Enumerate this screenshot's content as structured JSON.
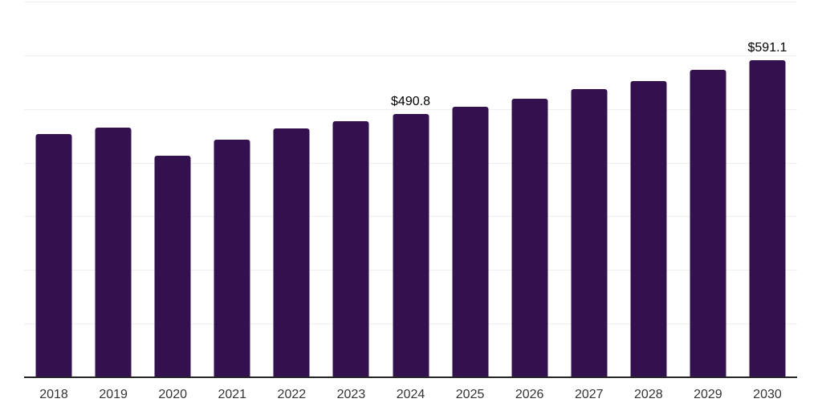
{
  "chart_data": {
    "type": "bar",
    "categories": [
      "2018",
      "2019",
      "2020",
      "2021",
      "2022",
      "2023",
      "2024",
      "2025",
      "2026",
      "2027",
      "2028",
      "2029",
      "2030"
    ],
    "values": [
      453.7,
      465.5,
      413.4,
      443.3,
      464.2,
      477.8,
      490.8,
      504.4,
      518.9,
      536.3,
      552.6,
      573.0,
      591.1
    ],
    "data_labels": [
      "",
      "",
      "",
      "",
      "",
      "",
      "$490.8",
      "",
      "",
      "",
      "",
      "",
      "$591.1"
    ],
    "title": "",
    "xlabel": "",
    "ylabel": "",
    "ylim": [
      0,
      700
    ],
    "gridline_step": 100,
    "grid": "horizontal",
    "legend": "none",
    "colors": {
      "bar": "#33114E",
      "gridline": "#efefef",
      "axis_line": "#262626",
      "tick_label": "#333333",
      "data_label": "#000000",
      "background": "#ffffff"
    }
  }
}
